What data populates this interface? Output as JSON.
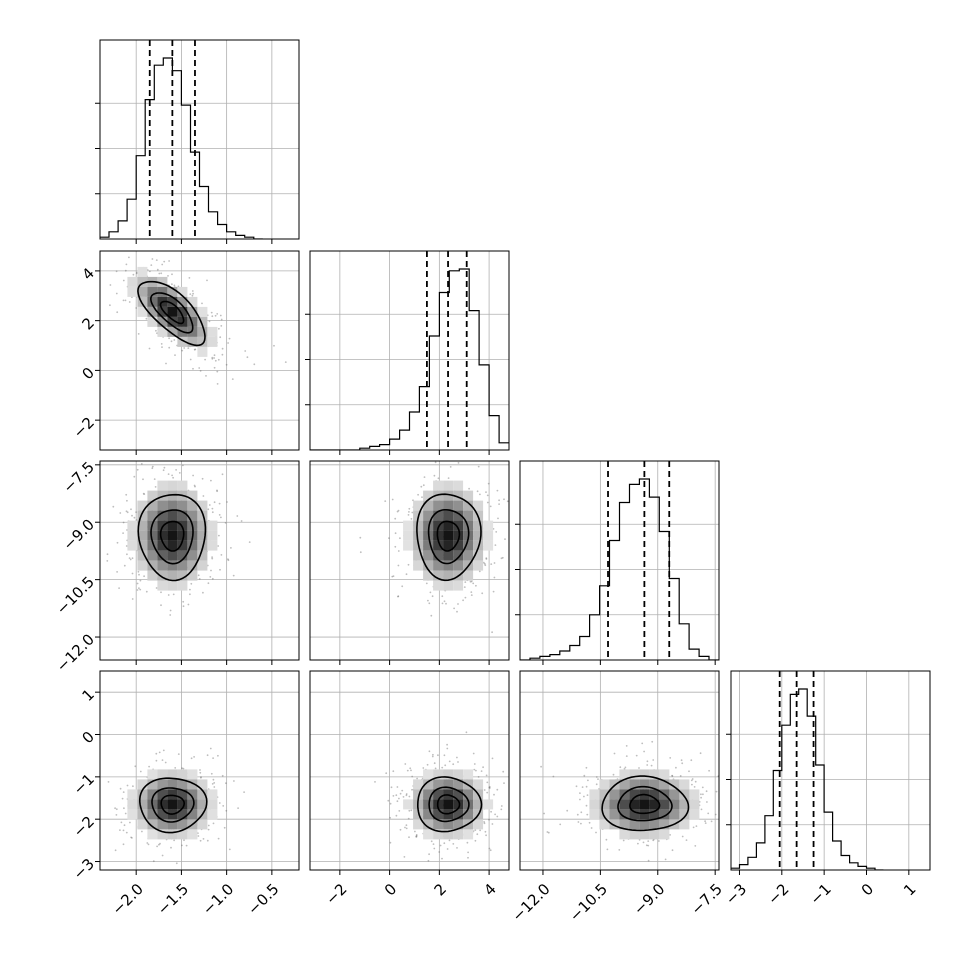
{
  "chart_data": {
    "type": "scatter",
    "subtype": "corner-plot",
    "grid": true,
    "parameters": [
      {
        "ticks": [
          -2.0,
          -1.5,
          -1.0,
          -0.5
        ],
        "tick_labels": [
          "−2.0",
          "−1.5",
          "−1.0",
          "−0.5"
        ],
        "range": [
          -2.4,
          -0.2
        ],
        "median": -1.6,
        "q16": -1.85,
        "q84": -1.35,
        "sd": 0.23
      },
      {
        "ticks": [
          -2,
          0,
          2,
          4
        ],
        "tick_labels": [
          "−2",
          "0",
          "2",
          "4"
        ],
        "range": [
          -3.2,
          4.8
        ],
        "median": 2.35,
        "q16": 1.5,
        "q84": 3.1,
        "sd": 0.8
      },
      {
        "ticks": [
          -12.0,
          -10.5,
          -9.0,
          -7.5
        ],
        "tick_labels": [
          "−12.0",
          "−10.5",
          "−9.0",
          "−7.5"
        ],
        "range": [
          -12.6,
          -7.4
        ],
        "median": -9.35,
        "q16": -10.3,
        "q84": -8.7,
        "sd": 0.7
      },
      {
        "ticks": [
          -3,
          -2,
          -1,
          0,
          1
        ],
        "tick_labels": [
          "−3",
          "−2",
          "−1",
          "0",
          "1"
        ],
        "range": [
          -3.2,
          1.5
        ],
        "median": -1.65,
        "q16": -2.05,
        "q84": -1.25,
        "sd": 0.4
      }
    ],
    "correlations": [
      [
        1,
        -0.7,
        0,
        0
      ],
      [
        -0.7,
        1,
        0,
        0
      ],
      [
        0,
        0,
        1,
        0
      ],
      [
        0,
        0,
        0,
        1
      ]
    ],
    "diagonal": [
      {
        "type": "histogram",
        "bin_edges": [
          -2.4,
          -2.3,
          -2.2,
          -2.1,
          -2.0,
          -1.9,
          -1.8,
          -1.7,
          -1.6,
          -1.5,
          -1.4,
          -1.3,
          -1.2,
          -1.1,
          -1.0,
          -0.9,
          -0.8,
          -0.7,
          -0.6
        ],
        "counts": [
          0.01,
          0.04,
          0.1,
          0.22,
          0.46,
          0.77,
          0.96,
          1.0,
          0.93,
          0.74,
          0.48,
          0.29,
          0.15,
          0.08,
          0.04,
          0.02,
          0.01,
          0.0
        ]
      },
      {
        "type": "histogram",
        "bin_edges": [
          -3.2,
          -2.8,
          -2.4,
          -2.0,
          -1.6,
          -1.2,
          -0.8,
          -0.4,
          0.0,
          0.4,
          0.8,
          1.2,
          1.6,
          2.0,
          2.4,
          2.8,
          3.2,
          3.6,
          4.0,
          4.4,
          4.8
        ],
        "counts": [
          0.0,
          0.0,
          0.0,
          0.0,
          0.0,
          0.01,
          0.02,
          0.03,
          0.06,
          0.11,
          0.21,
          0.35,
          0.63,
          0.87,
          0.99,
          1.0,
          0.77,
          0.47,
          0.19,
          0.04
        ]
      },
      {
        "type": "histogram",
        "bin_edges": [
          -12.6,
          -12.34,
          -12.08,
          -11.82,
          -11.56,
          -11.3,
          -11.04,
          -10.78,
          -10.52,
          -10.26,
          -10.0,
          -9.74,
          -9.48,
          -9.22,
          -8.96,
          -8.7,
          -8.44,
          -8.18,
          -7.92,
          -7.66,
          -7.4
        ],
        "counts": [
          0.0,
          0.01,
          0.02,
          0.03,
          0.05,
          0.08,
          0.13,
          0.25,
          0.41,
          0.66,
          0.87,
          0.97,
          1.0,
          0.9,
          0.71,
          0.45,
          0.2,
          0.06,
          0.02,
          0.0
        ]
      },
      {
        "type": "histogram",
        "bin_edges": [
          -3.2,
          -3.0,
          -2.8,
          -2.6,
          -2.4,
          -2.2,
          -2.0,
          -1.8,
          -1.6,
          -1.4,
          -1.2,
          -1.0,
          -0.8,
          -0.6,
          -0.4,
          -0.2,
          0.0,
          0.2,
          0.4
        ],
        "counts": [
          0.01,
          0.03,
          0.07,
          0.15,
          0.3,
          0.55,
          0.8,
          0.97,
          1.0,
          0.85,
          0.58,
          0.32,
          0.16,
          0.08,
          0.04,
          0.02,
          0.01,
          0.0
        ]
      }
    ]
  }
}
